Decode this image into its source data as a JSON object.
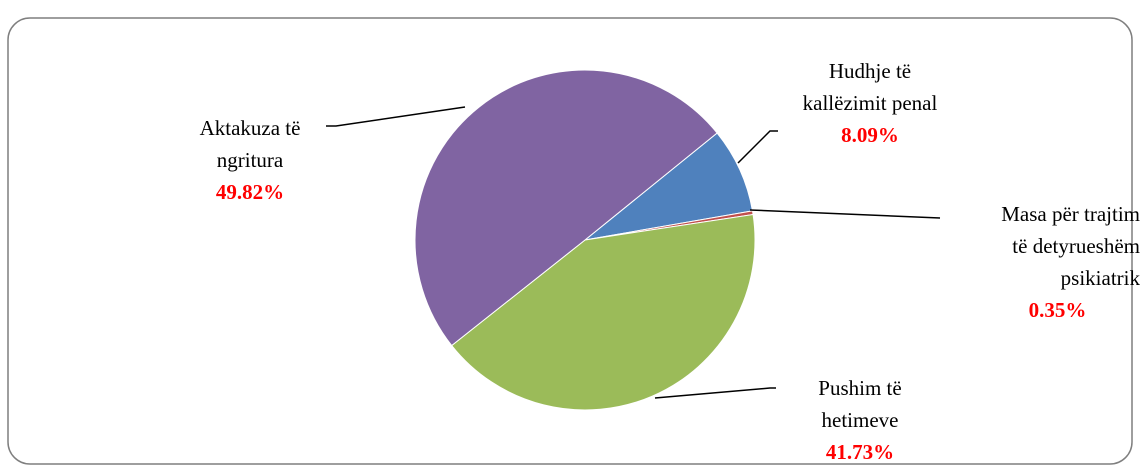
{
  "chart_data": {
    "type": "pie",
    "categories": [
      "Hudhje të\nkallëzimit penal",
      "Masa për trajtim\ntë detyrueshëm\npsikiatrik",
      "Pushim të\nhetimeve",
      "Aktakuza të\nngritura"
    ],
    "values": [
      8.09,
      0.35,
      41.73,
      49.82
    ],
    "value_labels": [
      "8.09%",
      "0.35%",
      "41.73%",
      "49.82%"
    ],
    "colors": [
      "#4f81bd",
      "#c0504d",
      "#9bbb59",
      "#8064a2"
    ]
  }
}
